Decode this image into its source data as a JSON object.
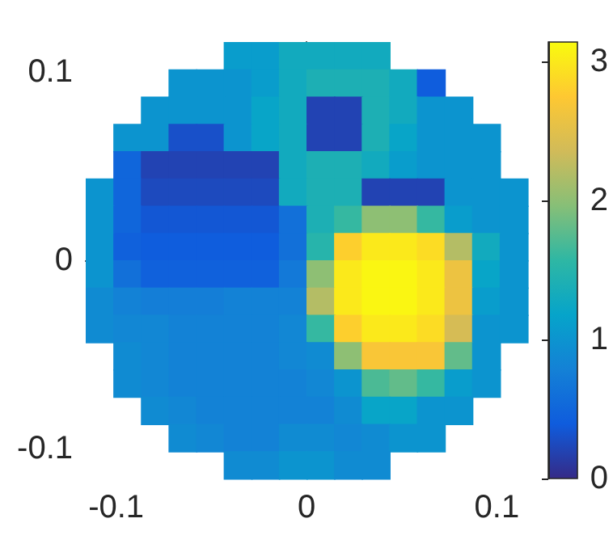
{
  "chart_data": {
    "type": "heatmap",
    "x": [
      -0.10875,
      -0.09425,
      -0.07975,
      -0.06525,
      -0.05075,
      -0.03625,
      -0.02175,
      -0.00725,
      0.00725,
      0.02175,
      0.03625,
      0.05075,
      0.06525,
      0.07975,
      0.09425,
      0.10875
    ],
    "y": [
      0.10875,
      0.09425,
      0.07975,
      0.06525,
      0.05075,
      0.03625,
      0.02175,
      0.00725,
      -0.00725,
      -0.02175,
      -0.03625,
      -0.05075,
      -0.06525,
      -0.07975,
      -0.09425,
      -0.10875
    ],
    "xlim": [
      -0.116,
      0.116
    ],
    "xticks": [
      -0.1,
      0,
      0.1
    ],
    "ylim": [
      -0.116,
      0.116
    ],
    "yticks": [
      -0.1,
      0,
      0.1
    ],
    "clim": [
      0,
      3.14
    ],
    "cticks": [
      0,
      1,
      2,
      3
    ],
    "cells": [
      [
        null,
        null,
        null,
        null,
        null,
        1.1,
        1.1,
        1.3,
        1.3,
        1.3,
        1.3,
        null,
        null,
        null,
        null,
        null
      ],
      [
        null,
        null,
        null,
        1.0,
        1.0,
        1.0,
        1.1,
        1.3,
        1.4,
        1.4,
        1.4,
        1.3,
        0.4,
        null,
        null,
        null
      ],
      [
        null,
        null,
        1.0,
        1.0,
        1.0,
        1.0,
        1.2,
        1.3,
        0.2,
        0.2,
        1.4,
        1.3,
        1.0,
        1.0,
        null,
        null
      ],
      [
        null,
        1.0,
        1.0,
        0.3,
        0.3,
        1.0,
        1.2,
        1.3,
        0.2,
        0.2,
        1.4,
        1.2,
        1.0,
        1.0,
        1.0,
        null
      ],
      [
        null,
        0.5,
        0.2,
        0.2,
        0.2,
        0.2,
        0.2,
        1.3,
        1.4,
        1.4,
        1.3,
        1.1,
        1.0,
        1.0,
        1.0,
        null
      ],
      [
        1.0,
        0.5,
        0.25,
        0.25,
        0.25,
        0.25,
        0.25,
        1.3,
        1.4,
        1.4,
        0.2,
        0.2,
        0.2,
        1.0,
        1.0,
        1.0
      ],
      [
        1.0,
        0.5,
        0.35,
        0.35,
        0.35,
        0.35,
        0.35,
        0.6,
        1.4,
        1.6,
        2.0,
        2.0,
        1.6,
        1.1,
        1.0,
        1.0
      ],
      [
        1.0,
        0.45,
        0.4,
        0.4,
        0.4,
        0.4,
        0.4,
        0.6,
        1.5,
        2.8,
        3.0,
        3.0,
        2.9,
        2.2,
        1.3,
        1.0
      ],
      [
        1.0,
        0.6,
        0.45,
        0.45,
        0.45,
        0.45,
        0.45,
        0.7,
        2.0,
        3.0,
        3.1,
        3.1,
        3.0,
        2.6,
        1.2,
        1.0
      ],
      [
        0.9,
        0.8,
        0.75,
        0.75,
        0.75,
        0.8,
        0.8,
        0.8,
        2.2,
        3.0,
        3.1,
        3.1,
        3.0,
        2.6,
        1.1,
        1.0
      ],
      [
        0.9,
        0.85,
        0.85,
        0.8,
        0.8,
        0.8,
        0.8,
        0.85,
        1.6,
        2.8,
        3.0,
        3.0,
        2.9,
        2.4,
        1.0,
        1.0
      ],
      [
        null,
        0.9,
        0.85,
        0.8,
        0.8,
        0.8,
        0.8,
        0.85,
        0.9,
        2.0,
        2.7,
        2.7,
        2.7,
        1.8,
        1.0,
        null
      ],
      [
        null,
        0.9,
        0.85,
        0.8,
        0.8,
        0.8,
        0.8,
        0.8,
        0.85,
        1.0,
        1.7,
        1.8,
        1.6,
        1.1,
        1.0,
        null
      ],
      [
        null,
        null,
        0.9,
        0.85,
        0.8,
        0.8,
        0.8,
        0.8,
        0.8,
        0.9,
        1.2,
        1.2,
        1.0,
        1.0,
        null,
        null
      ],
      [
        null,
        null,
        null,
        0.9,
        0.85,
        0.8,
        0.8,
        0.9,
        0.9,
        0.85,
        0.9,
        1.0,
        1.0,
        null,
        null,
        null
      ],
      [
        null,
        null,
        null,
        null,
        null,
        0.9,
        0.9,
        1.0,
        1.0,
        0.9,
        0.9,
        null,
        null,
        null,
        null,
        null
      ]
    ]
  }
}
